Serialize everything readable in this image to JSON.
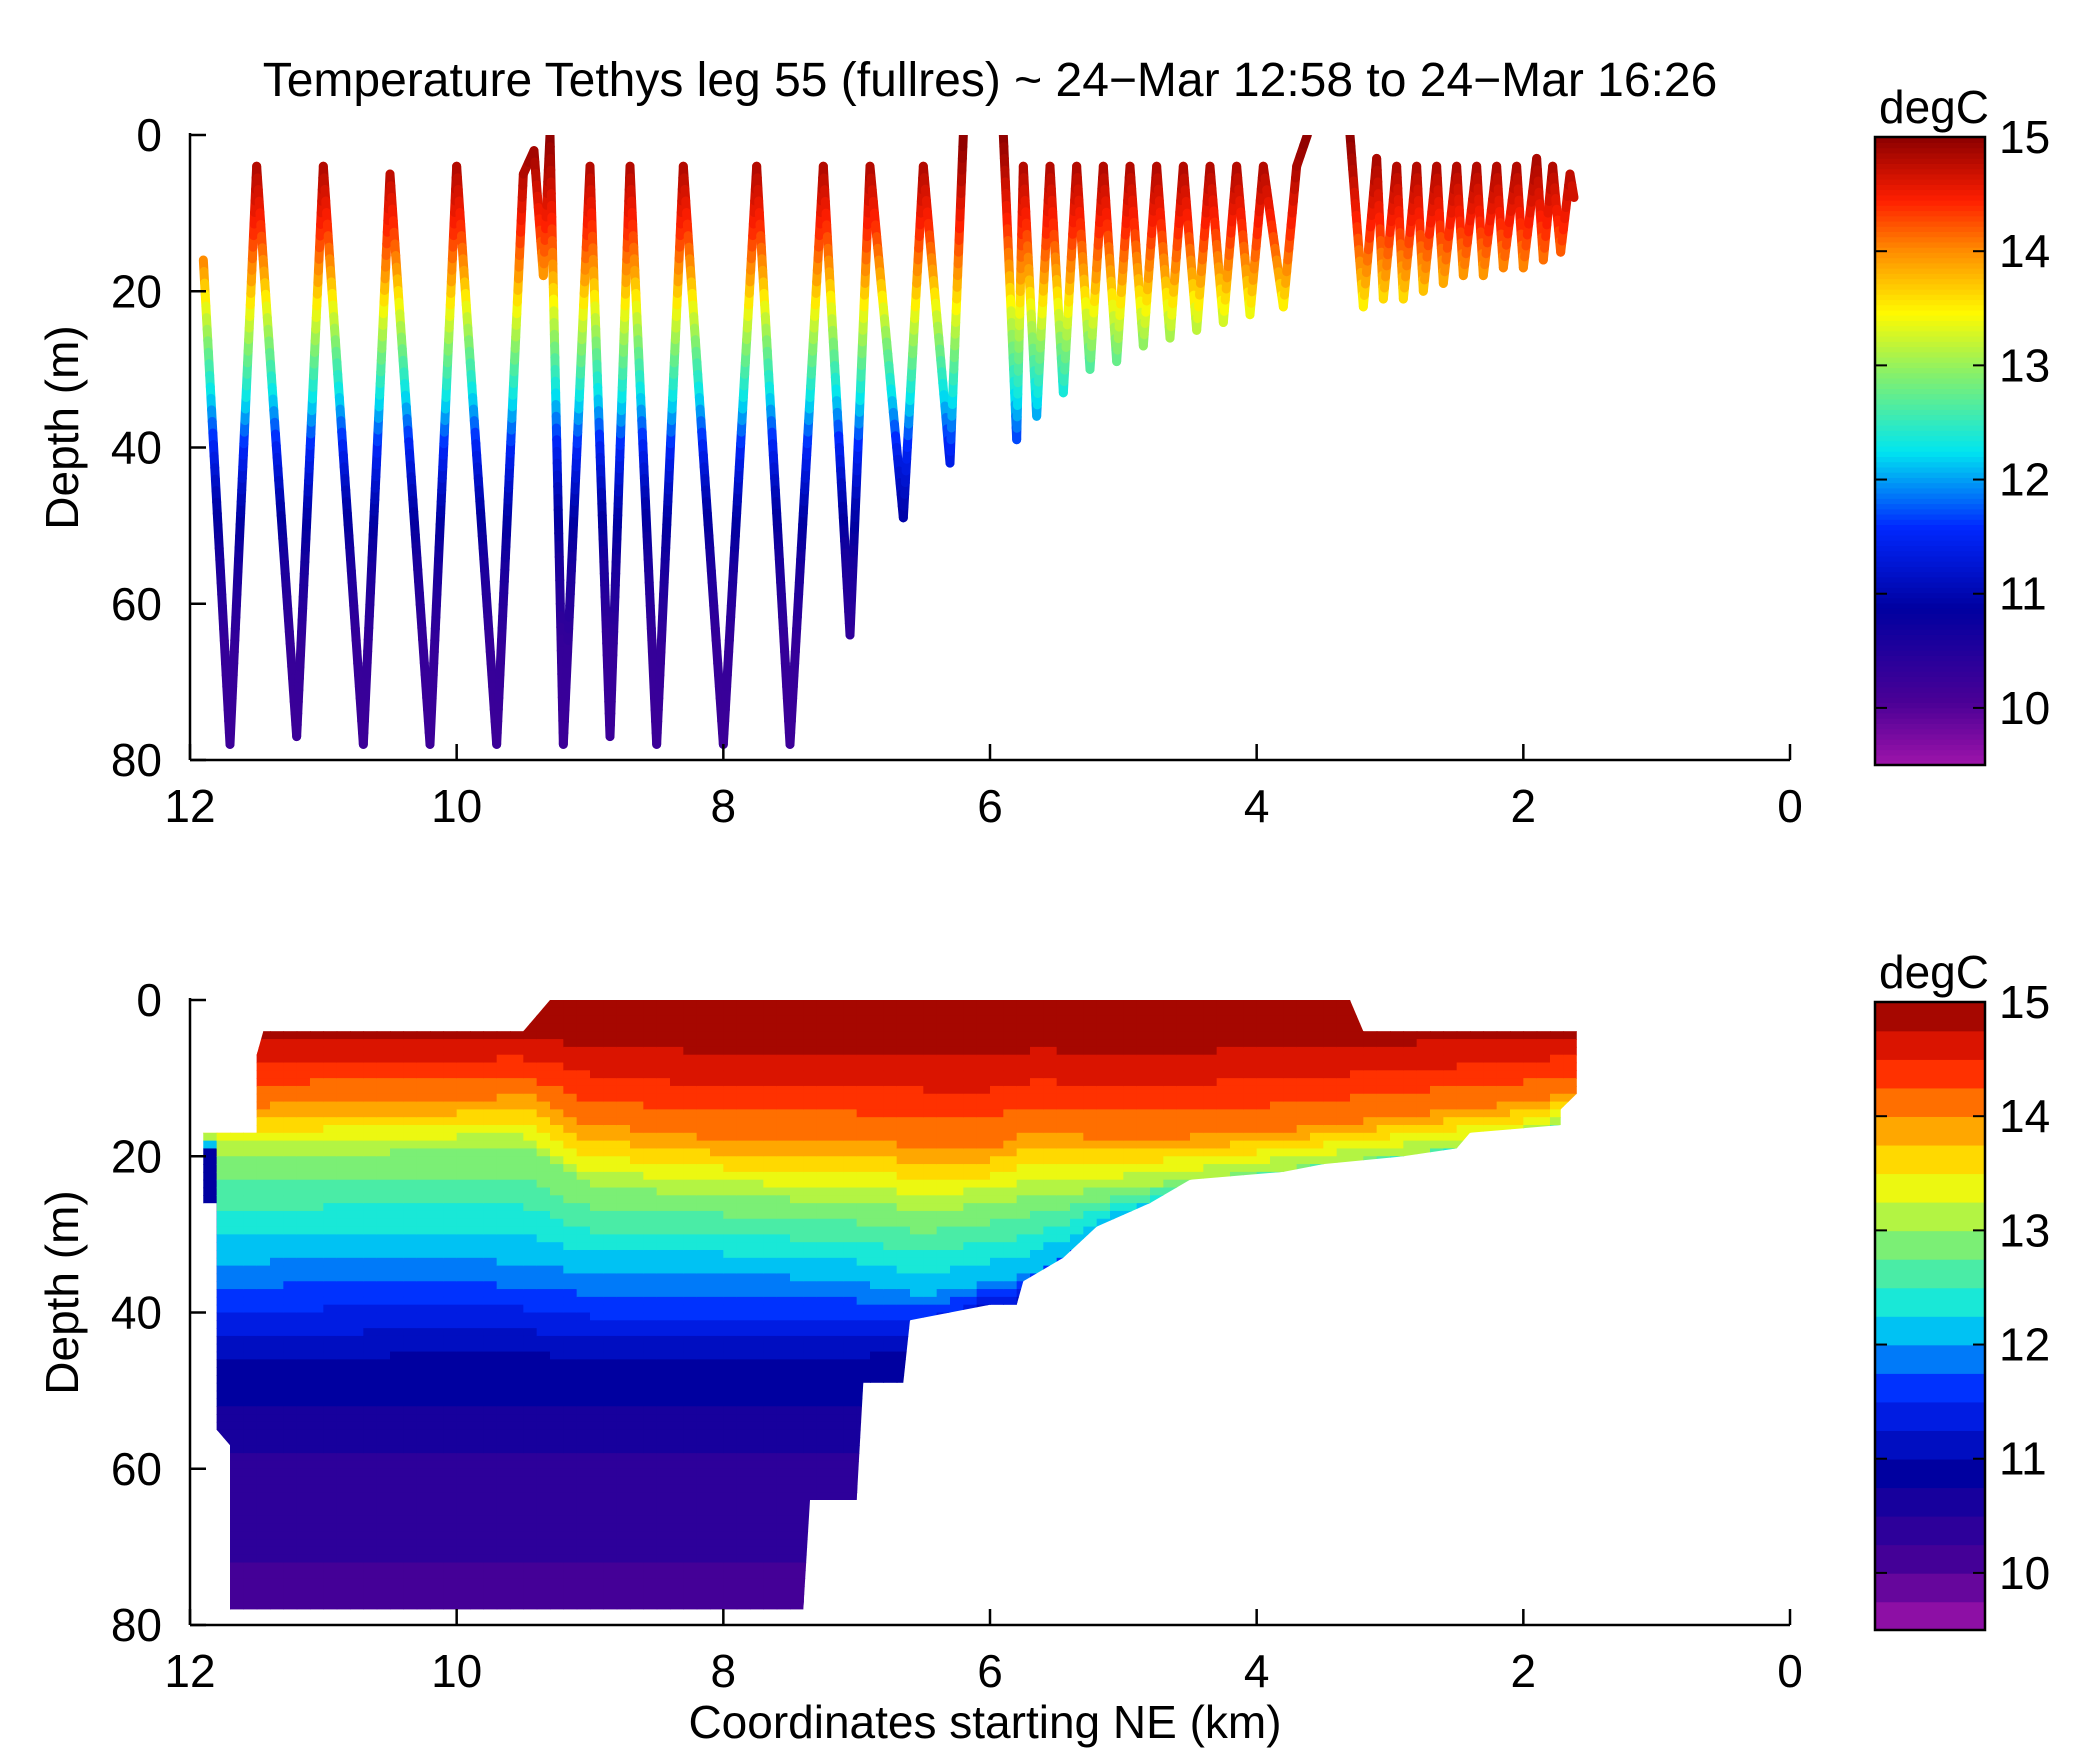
{
  "figure": {
    "title": "Temperature Tethys leg 55 (fullres) ~ 24−Mar 12:58 to 24−Mar 16:26",
    "xlabel": "Coordinates starting NE (km)"
  },
  "chart_data": [
    {
      "type": "scatter",
      "title": "Temperature Tethys leg 55 (fullres) ~ 24−Mar 12:58 to 24−Mar 16:26",
      "xlabel": "",
      "ylabel": "Depth (m)",
      "xlim": [
        12,
        0
      ],
      "ylim": [
        0,
        80
      ],
      "y_reversed": true,
      "x_reversed": true,
      "xticks": [
        "12",
        "10",
        "8",
        "6",
        "4",
        "2",
        "0"
      ],
      "yticks": [
        "0",
        "20",
        "40",
        "60",
        "80"
      ],
      "colorbar": {
        "label": "degC",
        "range": [
          9.5,
          15
        ],
        "ticks": [
          "10",
          "11",
          "12",
          "13",
          "14",
          "15"
        ],
        "colormap": "jet"
      },
      "track": {
        "description": "yo-yo profile path, vertices as [distance_km, depth_m]",
        "vertices": [
          [
            11.9,
            16
          ],
          [
            11.7,
            78
          ],
          [
            11.5,
            4
          ],
          [
            11.2,
            77
          ],
          [
            11.0,
            4
          ],
          [
            10.7,
            78
          ],
          [
            10.5,
            5
          ],
          [
            10.2,
            78
          ],
          [
            10.0,
            4
          ],
          [
            9.7,
            78
          ],
          [
            9.5,
            5
          ],
          [
            9.42,
            2
          ],
          [
            9.35,
            18
          ],
          [
            9.3,
            0
          ],
          [
            9.2,
            78
          ],
          [
            9.0,
            4
          ],
          [
            8.85,
            77
          ],
          [
            8.7,
            4
          ],
          [
            8.5,
            78
          ],
          [
            8.3,
            4
          ],
          [
            8.0,
            78
          ],
          [
            7.75,
            4
          ],
          [
            7.5,
            78
          ],
          [
            7.25,
            4
          ],
          [
            7.05,
            64
          ],
          [
            6.9,
            4
          ],
          [
            6.65,
            49
          ],
          [
            6.5,
            4
          ],
          [
            6.3,
            42
          ],
          [
            6.2,
            0
          ],
          [
            5.9,
            0
          ],
          [
            5.8,
            39
          ],
          [
            5.75,
            4
          ],
          [
            5.65,
            36
          ],
          [
            5.55,
            4
          ],
          [
            5.45,
            33
          ],
          [
            5.35,
            4
          ],
          [
            5.25,
            30
          ],
          [
            5.15,
            4
          ],
          [
            5.05,
            29
          ],
          [
            4.95,
            4
          ],
          [
            4.85,
            27
          ],
          [
            4.75,
            4
          ],
          [
            4.65,
            26
          ],
          [
            4.55,
            4
          ],
          [
            4.45,
            25
          ],
          [
            4.35,
            4
          ],
          [
            4.25,
            24
          ],
          [
            4.15,
            4
          ],
          [
            4.05,
            23
          ],
          [
            3.95,
            4
          ],
          [
            3.8,
            22
          ],
          [
            3.7,
            4
          ],
          [
            3.62,
            0
          ],
          [
            3.3,
            0
          ],
          [
            3.2,
            22
          ],
          [
            3.1,
            3
          ],
          [
            3.05,
            21
          ],
          [
            2.95,
            4
          ],
          [
            2.9,
            21
          ],
          [
            2.8,
            4
          ],
          [
            2.75,
            20
          ],
          [
            2.65,
            4
          ],
          [
            2.6,
            19
          ],
          [
            2.5,
            4
          ],
          [
            2.45,
            18
          ],
          [
            2.35,
            4
          ],
          [
            2.3,
            18
          ],
          [
            2.2,
            4
          ],
          [
            2.15,
            17
          ],
          [
            2.05,
            4
          ],
          [
            2.0,
            17
          ],
          [
            1.9,
            3
          ],
          [
            1.85,
            16
          ],
          [
            1.78,
            4
          ],
          [
            1.72,
            15
          ],
          [
            1.65,
            5
          ],
          [
            1.62,
            8
          ]
        ],
        "breaks_after_index": [
          29,
          53
        ],
        "temperature_profile": [
          [
            0,
            15.0
          ],
          [
            5,
            14.8
          ],
          [
            12,
            14.4
          ],
          [
            18,
            13.9
          ],
          [
            23,
            13.3
          ],
          [
            28,
            12.8
          ],
          [
            34,
            12.2
          ],
          [
            40,
            11.5
          ],
          [
            47,
            11.0
          ],
          [
            55,
            10.6
          ],
          [
            65,
            10.3
          ],
          [
            80,
            10.2
          ]
        ]
      }
    },
    {
      "type": "heatmap",
      "title": "",
      "xlabel": "Coordinates starting NE (km)",
      "ylabel": "Depth (m)",
      "xlim": [
        12,
        0
      ],
      "ylim": [
        0,
        80
      ],
      "y_reversed": true,
      "x_reversed": true,
      "xticks": [
        "12",
        "10",
        "8",
        "6",
        "4",
        "2",
        "0"
      ],
      "yticks": [
        "0",
        "20",
        "40",
        "60",
        "80"
      ],
      "colorbar": {
        "label": "degC",
        "range": [
          9.5,
          15
        ],
        "ticks": [
          "10",
          "11",
          "12",
          "13",
          "14",
          "15"
        ],
        "colormap": "jet",
        "levels": 20
      },
      "coverage": {
        "top_outline": [
          [
            11.9,
            17
          ],
          [
            11.5,
            17
          ],
          [
            11.5,
            7
          ],
          [
            11.45,
            4
          ],
          [
            9.5,
            4
          ],
          [
            9.4,
            2
          ],
          [
            9.3,
            0
          ],
          [
            3.3,
            0
          ],
          [
            3.2,
            4
          ],
          [
            1.6,
            4
          ],
          [
            1.6,
            12
          ],
          [
            1.72,
            14
          ],
          [
            1.72,
            16
          ]
        ],
        "bottom_outline": [
          [
            1.72,
            16
          ],
          [
            2.4,
            17
          ],
          [
            2.5,
            19
          ],
          [
            2.9,
            20
          ],
          [
            3.5,
            21
          ],
          [
            3.8,
            22
          ],
          [
            4.5,
            23
          ],
          [
            4.8,
            26
          ],
          [
            5.2,
            29
          ],
          [
            5.45,
            33
          ],
          [
            5.65,
            35
          ],
          [
            5.75,
            36
          ],
          [
            5.8,
            39
          ],
          [
            6.0,
            39
          ],
          [
            6.6,
            41
          ],
          [
            6.65,
            49
          ],
          [
            6.95,
            49
          ],
          [
            7.0,
            64
          ],
          [
            7.35,
            64
          ],
          [
            7.4,
            78
          ],
          [
            7.6,
            78
          ],
          [
            11.7,
            78
          ],
          [
            11.7,
            57
          ],
          [
            11.8,
            55
          ],
          [
            11.8,
            26
          ],
          [
            11.9,
            26
          ],
          [
            11.9,
            17
          ]
        ]
      },
      "isotherms": {
        "description": "depth (m) of selected isotherms versus distance (km)",
        "x": [
          11.8,
          11.0,
          10.0,
          9.5,
          9.0,
          8.0,
          7.0,
          6.5,
          6.0,
          5.7,
          5.0,
          4.0,
          3.0,
          2.0,
          1.7
        ],
        "t14": [
          14,
          13,
          13,
          12,
          16,
          18,
          18,
          19,
          19,
          17,
          18,
          17,
          15,
          13,
          12
        ],
        "t13": [
          20,
          20,
          19,
          19,
          24,
          25,
          26,
          27,
          26,
          25,
          24,
          22,
          20,
          18,
          16
        ],
        "t12": [
          34,
          33,
          33,
          34,
          35,
          35,
          36,
          38,
          36,
          35,
          28,
          24,
          21,
          18,
          16
        ],
        "t11": [
          46,
          46,
          45,
          45,
          46,
          46,
          46,
          44,
          40,
          39,
          30,
          24,
          21,
          18,
          16
        ]
      }
    }
  ]
}
